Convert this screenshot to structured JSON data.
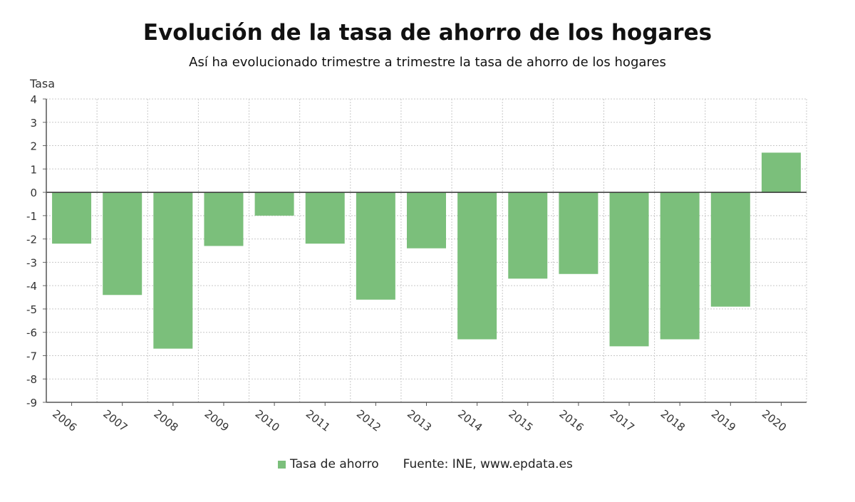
{
  "chart_data": {
    "type": "bar",
    "title": "Evolución de la tasa de ahorro de los hogares",
    "subtitle": "Así ha evolucionado trimestre a trimestre la tasa de ahorro de los hogares",
    "ylabel": "Tasa",
    "xlabel": "",
    "ylim": [
      -9,
      4
    ],
    "yticks": [
      4,
      3,
      2,
      1,
      0,
      -1,
      -2,
      -3,
      -4,
      -5,
      -6,
      -7,
      -8,
      -9
    ],
    "grid": true,
    "categories": [
      "2006",
      "2007",
      "2008",
      "2009",
      "2010",
      "2011",
      "2012",
      "2013",
      "2014",
      "2015",
      "2016",
      "2017",
      "2018",
      "2019",
      "2020"
    ],
    "series": [
      {
        "name": "Tasa de ahorro",
        "color": "#7bbf7b",
        "values": [
          -2.2,
          -4.4,
          -6.7,
          -2.3,
          -1.0,
          -2.2,
          -4.6,
          -2.4,
          -6.3,
          -3.7,
          -3.5,
          -6.6,
          -6.3,
          -4.9,
          1.7
        ]
      }
    ],
    "legend_position": "bottom"
  },
  "source": "Fuente: INE, www.epdata.es"
}
